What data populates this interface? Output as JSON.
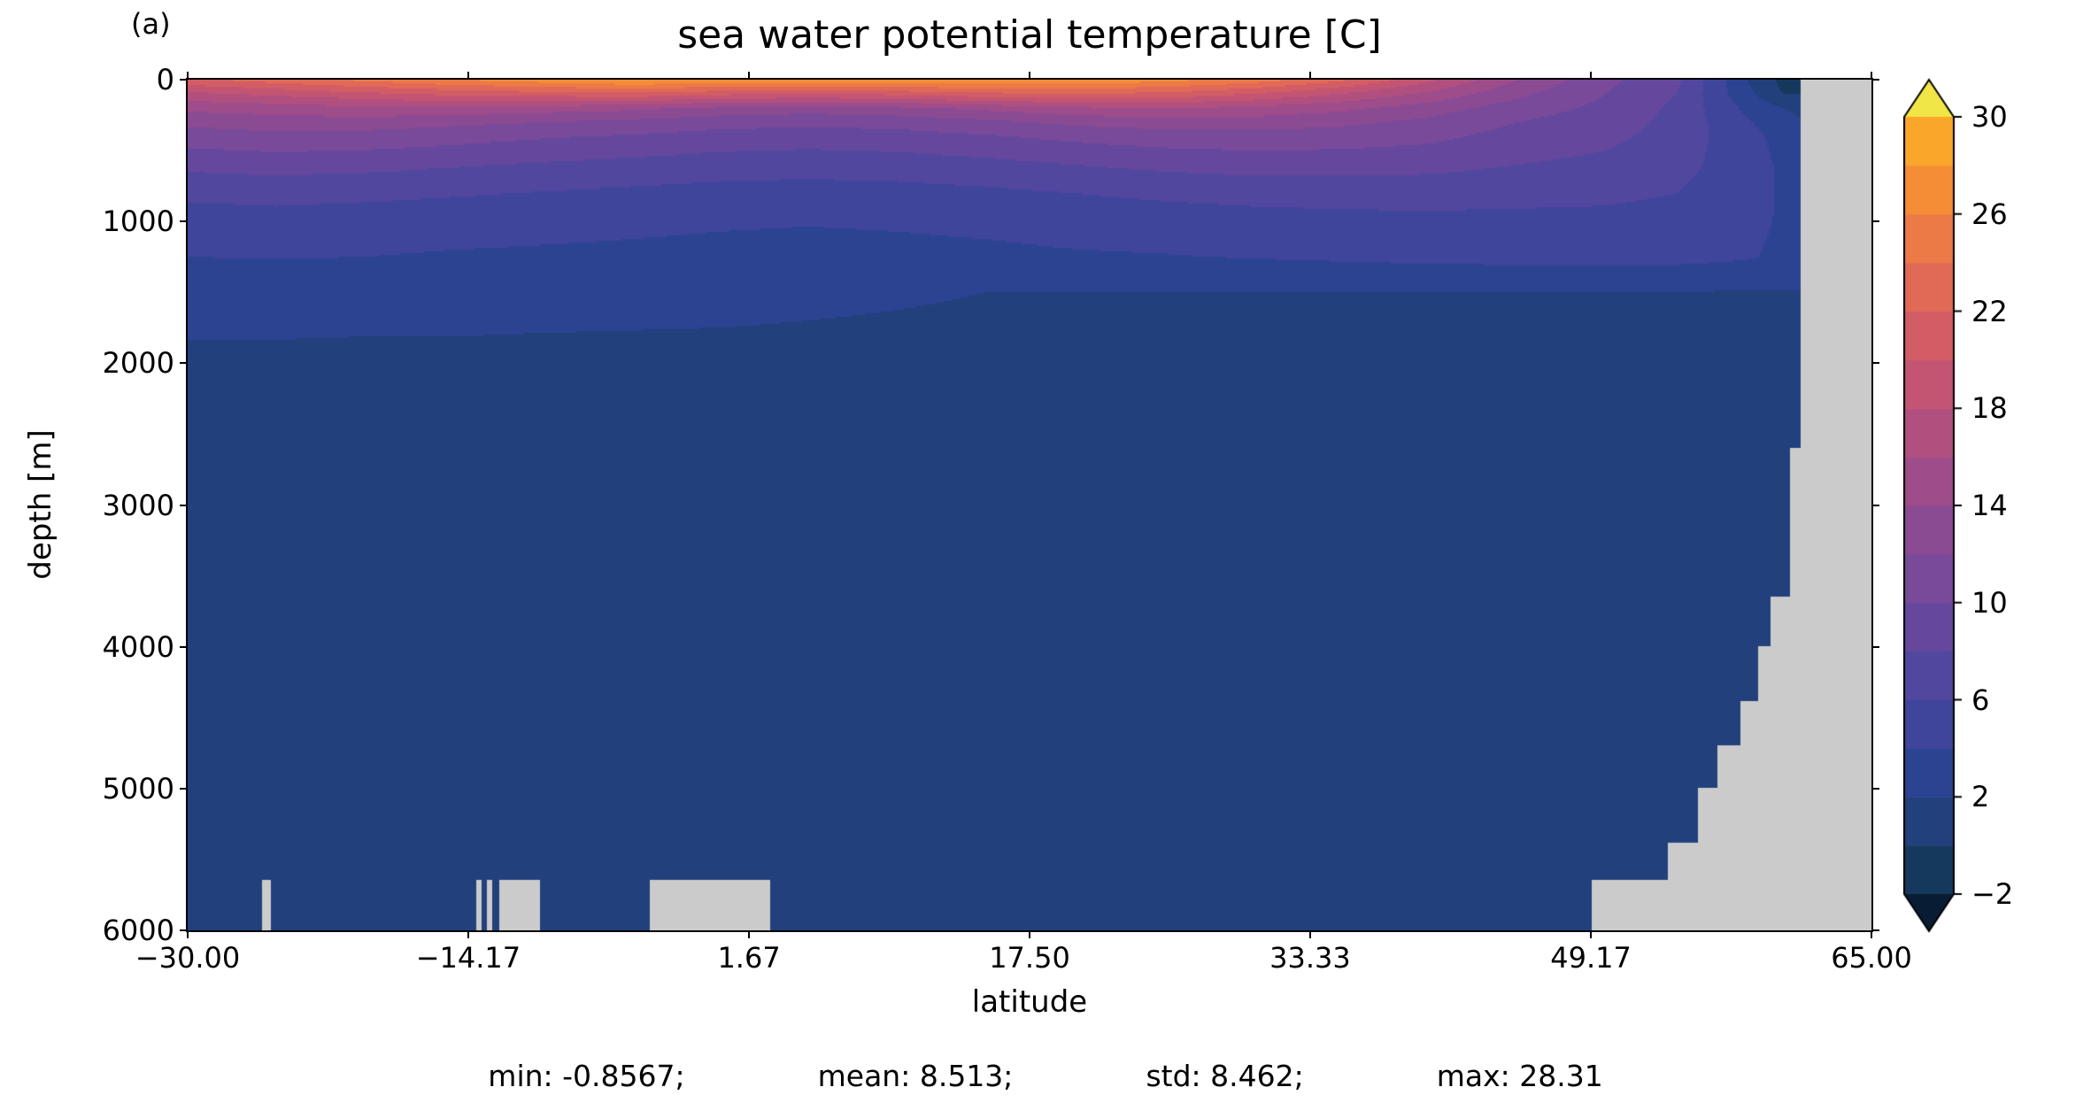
{
  "chart_data": {
    "type": "heatmap",
    "title": "sea water potential temperature [C]",
    "panel_label": "(a)",
    "xlabel": "latitude",
    "ylabel": "depth [m]",
    "xlim": [
      -30,
      65
    ],
    "ylim": [
      0,
      6000
    ],
    "x_ticks": [
      {
        "value": -30.0,
        "label": "−30.00"
      },
      {
        "value": -14.17,
        "label": "−14.17"
      },
      {
        "value": 1.67,
        "label": "1.67"
      },
      {
        "value": 17.5,
        "label": "17.50"
      },
      {
        "value": 33.33,
        "label": "33.33"
      },
      {
        "value": 49.17,
        "label": "49.17"
      },
      {
        "value": 65.0,
        "label": "65.00"
      }
    ],
    "y_ticks": [
      {
        "value": 0,
        "label": "0"
      },
      {
        "value": 1000,
        "label": "1000"
      },
      {
        "value": 2000,
        "label": "2000"
      },
      {
        "value": 3000,
        "label": "3000"
      },
      {
        "value": 4000,
        "label": "4000"
      },
      {
        "value": 5000,
        "label": "5000"
      },
      {
        "value": 6000,
        "label": "6000"
      }
    ],
    "colorbar": {
      "vmin": -2,
      "vmax": 30,
      "level_step": 2,
      "extend": "both",
      "ticks": [
        {
          "value": 30,
          "label": "30"
        },
        {
          "value": 26,
          "label": "26"
        },
        {
          "value": 22,
          "label": "22"
        },
        {
          "value": 18,
          "label": "18"
        },
        {
          "value": 14,
          "label": "14"
        },
        {
          "value": 10,
          "label": "10"
        },
        {
          "value": 6,
          "label": "6"
        },
        {
          "value": 2,
          "label": "2"
        },
        {
          "value": -2,
          "label": "−2"
        }
      ]
    },
    "colors": [
      "#081c33",
      "#15395c",
      "#21407c",
      "#2c4391",
      "#3f459b",
      "#52479f",
      "#65489d",
      "#784a99",
      "#8b4b93",
      "#9e4d8a",
      "#b1507f",
      "#c35573",
      "#d35d65",
      "#e16a56",
      "#ec7a46",
      "#f48d36",
      "#f9a62b",
      "#f1e647"
    ],
    "mask_color": "#cbcbcb",
    "grid": {
      "lats": [
        -30,
        -25,
        -20,
        -15,
        -10,
        -5,
        0,
        5,
        10,
        15,
        20,
        25,
        30,
        35,
        40,
        45,
        50,
        54,
        58,
        60,
        61,
        62,
        65
      ],
      "depths": [
        0,
        100,
        200,
        300,
        400,
        600,
        800,
        1000,
        1250,
        1500,
        2000,
        3000,
        4000,
        5000,
        6000
      ],
      "temps": [
        [
          21.5,
          23,
          24.5,
          26,
          27.2,
          28.3,
          27.8,
          27.5,
          27.8,
          28,
          27.6,
          26.8,
          25.2,
          22.5,
          18.5,
          14,
          10.5,
          8.5,
          2,
          -0.6,
          -0.8,
          -0.8,
          -0.8
        ],
        [
          17.5,
          18.5,
          19.5,
          20.5,
          21,
          21.5,
          20.5,
          20,
          20.5,
          21.5,
          22,
          21.5,
          20,
          18,
          15.5,
          12.5,
          10,
          8,
          2.5,
          0,
          0,
          0,
          0
        ],
        [
          14.5,
          15,
          15.5,
          15.5,
          15,
          14.5,
          13.5,
          13,
          13.5,
          14.5,
          15.5,
          16,
          15.5,
          14.5,
          13,
          11,
          9.5,
          7.6,
          3.5,
          2,
          1.5,
          1,
          1
        ],
        [
          12.5,
          13,
          13,
          12.5,
          12,
          11.5,
          10.8,
          10.5,
          10.8,
          11.5,
          12.5,
          13,
          13,
          12.5,
          11.5,
          10,
          9,
          7.4,
          4.2,
          3,
          2.2,
          1.8,
          1.8
        ],
        [
          11,
          11.5,
          11.3,
          10.8,
          10.2,
          9.8,
          9.2,
          9,
          9.2,
          9.8,
          10.5,
          11,
          11.2,
          11,
          10.5,
          9.3,
          8.5,
          7.2,
          4.6,
          3.4,
          2.6,
          2.2,
          2.2
        ],
        [
          8.5,
          8.8,
          8.6,
          8.2,
          7.8,
          7.4,
          7,
          6.8,
          7,
          7.4,
          8,
          8.5,
          8.8,
          8.8,
          8.6,
          8,
          7.5,
          6.7,
          4.8,
          3.7,
          3,
          2.6,
          2.6
        ],
        [
          6.5,
          6.7,
          6.5,
          6.2,
          5.9,
          5.6,
          5.3,
          5.2,
          5.3,
          5.6,
          6,
          6.4,
          6.7,
          6.8,
          6.8,
          6.6,
          6.4,
          6,
          4.7,
          3.8,
          3.2,
          2.8,
          2.8
        ],
        [
          5,
          5.2,
          5,
          4.8,
          4.6,
          4.4,
          4.2,
          4.1,
          4.2,
          4.4,
          4.7,
          5,
          5.2,
          5.4,
          5.5,
          5.5,
          5.5,
          5.3,
          4.5,
          3.8,
          3.3,
          3,
          3
        ],
        [
          4,
          4.1,
          4,
          3.8,
          3.7,
          3.6,
          3.5,
          3.4,
          3.5,
          3.6,
          3.8,
          3.9,
          4.1,
          4.3,
          4.5,
          4.6,
          4.7,
          4.6,
          4.2,
          3.6,
          3.2,
          2.9,
          2.9
        ],
        [
          2.6,
          2.6,
          2.5,
          2.5,
          2.4,
          2.35,
          2.3,
          2.2,
          2.1,
          2,
          1.95,
          1.95,
          1.95,
          1.95,
          2,
          2,
          2,
          1.95,
          1.9,
          1.9,
          1.9,
          1.9,
          1.9
        ],
        [
          1.7,
          1.7,
          1.7,
          1.7,
          1.7,
          1.7,
          1.7,
          1.7,
          1.7,
          1.7,
          1.7,
          1.7,
          1.7,
          1.7,
          1.7,
          1.8,
          1.8,
          1.8,
          1.8,
          1.8,
          1.8,
          1.8,
          1.8
        ],
        [
          1.5,
          1.5,
          1.5,
          1.5,
          1.5,
          1.5,
          1.5,
          1.5,
          1.5,
          1.5,
          1.5,
          1.5,
          1.5,
          1.5,
          1.5,
          1.5,
          1.5,
          1.5,
          1.5,
          1.5,
          1.5,
          1.5,
          1.5
        ],
        [
          1.3,
          1.3,
          1.3,
          1.3,
          1.3,
          1.3,
          1.3,
          1.3,
          1.3,
          1.3,
          1.3,
          1.3,
          1.3,
          1.3,
          1.3,
          1.3,
          1.3,
          1.3,
          1.3,
          1.3,
          1.3,
          1.3,
          1.3
        ],
        [
          1.1,
          1.1,
          1.1,
          1.1,
          1.1,
          1.1,
          1.1,
          1.1,
          1.1,
          1.1,
          1.1,
          1.1,
          1.1,
          1.1,
          1.1,
          1.1,
          1.1,
          1.1,
          1.1,
          1.1,
          1.1,
          1.1,
          1.1
        ],
        [
          0.9,
          0.9,
          0.9,
          0.9,
          0.9,
          0.9,
          0.9,
          0.9,
          0.9,
          0.9,
          0.9,
          0.9,
          0.9,
          0.9,
          0.9,
          0.9,
          0.9,
          0.9,
          0.9,
          0.9,
          0.9,
          0.9,
          0.9
        ]
      ]
    },
    "mask_rects": [
      {
        "lat": [
          61.0,
          65
        ],
        "depth": [
          0,
          6000
        ]
      },
      {
        "lat": [
          60.4,
          65
        ],
        "depth": [
          2600,
          6000
        ]
      },
      {
        "lat": [
          59.3,
          65
        ],
        "depth": [
          3650,
          6000
        ]
      },
      {
        "lat": [
          58.6,
          65
        ],
        "depth": [
          4000,
          6000
        ]
      },
      {
        "lat": [
          57.6,
          65
        ],
        "depth": [
          4380,
          6000
        ]
      },
      {
        "lat": [
          56.3,
          65
        ],
        "depth": [
          4700,
          6000
        ]
      },
      {
        "lat": [
          55.2,
          65
        ],
        "depth": [
          5000,
          6000
        ]
      },
      {
        "lat": [
          53.5,
          65
        ],
        "depth": [
          5380,
          6000
        ]
      },
      {
        "lat": [
          49.2,
          65
        ],
        "depth": [
          5650,
          6000
        ]
      },
      {
        "lat": [
          -25.8,
          -25.3
        ],
        "depth": [
          5650,
          6000
        ]
      },
      {
        "lat": [
          -13.7,
          -13.4
        ],
        "depth": [
          5650,
          6000
        ]
      },
      {
        "lat": [
          -13.1,
          -12.8
        ],
        "depth": [
          5650,
          6000
        ]
      },
      {
        "lat": [
          -12.4,
          -10.1
        ],
        "depth": [
          5650,
          6000
        ]
      },
      {
        "lat": [
          -3.9,
          2.9
        ],
        "depth": [
          5650,
          6000
        ]
      }
    ],
    "stats": {
      "min": "min: -0.8567;",
      "mean": "mean: 8.513;",
      "std": "std: 8.462;",
      "max": "max: 28.31"
    }
  }
}
